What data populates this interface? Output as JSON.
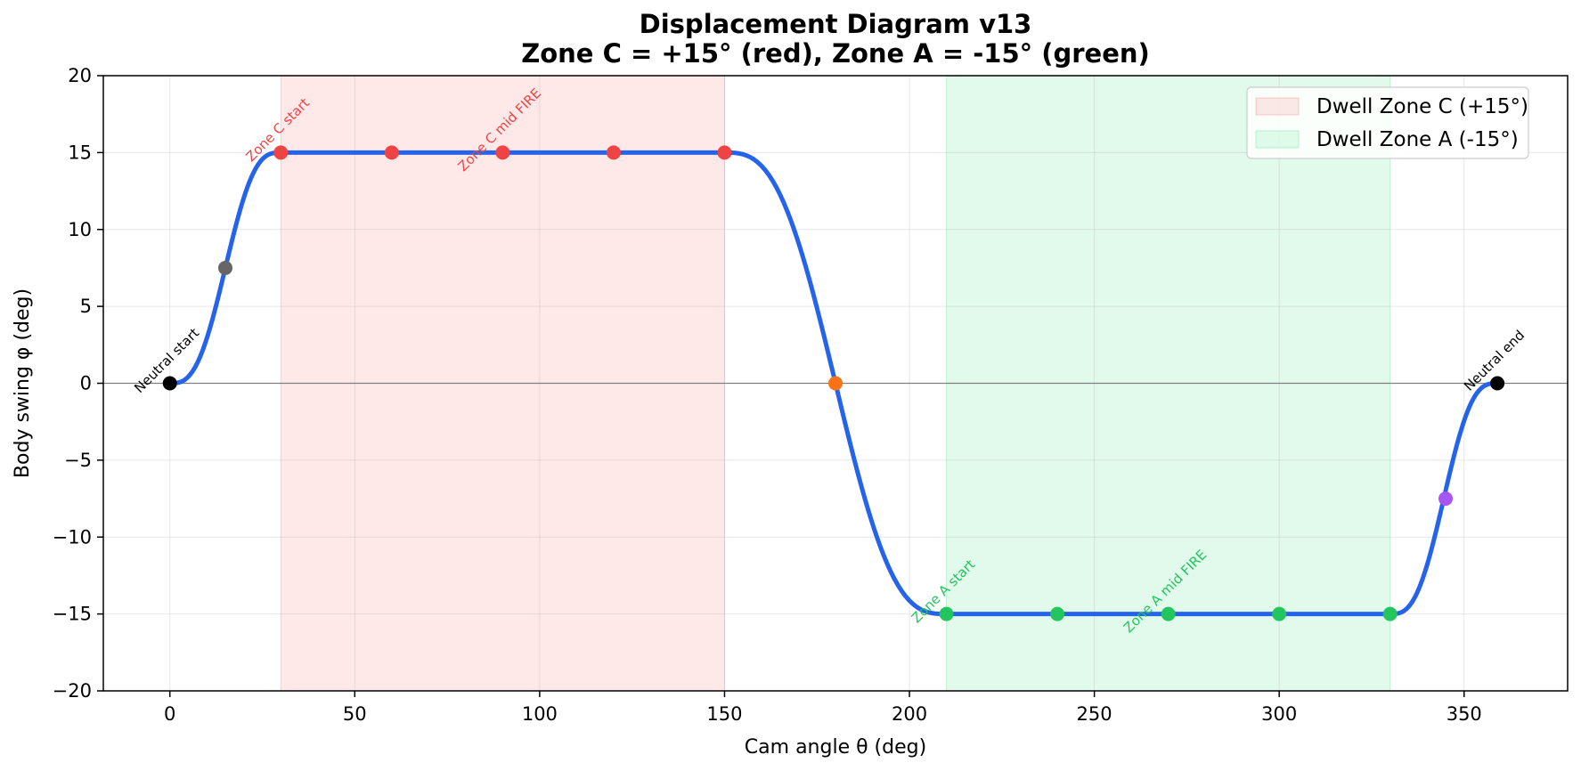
{
  "chart_data": {
    "type": "line",
    "title": "Displacement Diagram v13",
    "subtitle": "Zone C = +15° (red), Zone A = -15° (green)",
    "xlabel": "Cam angle θ (deg)",
    "ylabel": "Body swing φ (deg)",
    "xlim": [
      -18,
      378
    ],
    "ylim": [
      -20,
      20
    ],
    "xticks": [
      0,
      50,
      100,
      150,
      200,
      250,
      300,
      350
    ],
    "yticks": [
      -20,
      -15,
      -10,
      -5,
      0,
      5,
      10,
      15,
      20
    ],
    "xtick_labels": [
      "0",
      "50",
      "100",
      "150",
      "200",
      "250",
      "300",
      "350"
    ],
    "ytick_labels": [
      "−20",
      "−15",
      "−10",
      "−5",
      "0",
      "5",
      "10",
      "15",
      "20"
    ],
    "grid": true,
    "legend_position": "top-right",
    "curve": {
      "color": "#2563eb",
      "segments": [
        {
          "x0": 0,
          "x1": 30,
          "y0": 0,
          "y1": 15
        },
        {
          "x0": 30,
          "x1": 150,
          "y0": 15,
          "y1": 15
        },
        {
          "x0": 150,
          "x1": 210,
          "y0": 15,
          "y1": -15
        },
        {
          "x0": 210,
          "x1": 330,
          "y0": -15,
          "y1": -15
        },
        {
          "x0": 330,
          "x1": 359,
          "y0": -15,
          "y1": 0
        }
      ]
    },
    "zones": [
      {
        "label": "Dwell Zone C (+15°)",
        "x0": 30,
        "x1": 150,
        "color": "#f87171"
      },
      {
        "label": "Dwell Zone A (-15°)",
        "x0": 210,
        "x1": 330,
        "color": "#4ade80"
      }
    ],
    "points": [
      {
        "x": 0,
        "y": 0,
        "color": "#000000"
      },
      {
        "x": 15,
        "y": 7.5,
        "color": "#666666"
      },
      {
        "x": 30,
        "y": 15,
        "color": "#ef4444"
      },
      {
        "x": 60,
        "y": 15,
        "color": "#ef4444"
      },
      {
        "x": 90,
        "y": 15,
        "color": "#ef4444"
      },
      {
        "x": 120,
        "y": 15,
        "color": "#ef4444"
      },
      {
        "x": 150,
        "y": 15,
        "color": "#ef4444"
      },
      {
        "x": 180,
        "y": 0,
        "color": "#f97316"
      },
      {
        "x": 210,
        "y": -15,
        "color": "#22c55e"
      },
      {
        "x": 240,
        "y": -15,
        "color": "#22c55e"
      },
      {
        "x": 270,
        "y": -15,
        "color": "#22c55e"
      },
      {
        "x": 300,
        "y": -15,
        "color": "#22c55e"
      },
      {
        "x": 330,
        "y": -15,
        "color": "#22c55e"
      },
      {
        "x": 345,
        "y": -7.5,
        "color": "#a855f7"
      },
      {
        "x": 359,
        "y": 0,
        "color": "#000000"
      }
    ],
    "annotations": [
      {
        "text": "Neutral start",
        "x": 0,
        "y": 0,
        "color": "#000000"
      },
      {
        "text": "Zone C start",
        "x": 30,
        "y": 15,
        "color": "#ef4444"
      },
      {
        "text": "Zone C mid FIRE",
        "x": 90,
        "y": 15,
        "color": "#ef4444"
      },
      {
        "text": "Zone A start",
        "x": 210,
        "y": -15,
        "color": "#22c55e"
      },
      {
        "text": "Zone A mid FIRE",
        "x": 270,
        "y": -15,
        "color": "#22c55e"
      },
      {
        "text": "Neutral end",
        "x": 359,
        "y": 0,
        "color": "#000000"
      }
    ]
  }
}
